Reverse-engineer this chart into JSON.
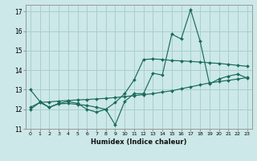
{
  "xlabel": "Humidex (Indice chaleur)",
  "bg_color": "#cce8e8",
  "grid_color": "#aacece",
  "line_color": "#1a6b5a",
  "xlim": [
    -0.5,
    23.5
  ],
  "ylim": [
    11,
    17.35
  ],
  "xticks": [
    0,
    1,
    2,
    3,
    4,
    5,
    6,
    7,
    8,
    9,
    10,
    11,
    12,
    13,
    14,
    15,
    16,
    17,
    18,
    19,
    20,
    21,
    22,
    23
  ],
  "yticks": [
    11,
    12,
    13,
    14,
    15,
    16,
    17
  ],
  "series1_x": [
    0,
    1,
    2,
    3,
    4,
    5,
    6,
    7,
    8,
    9,
    10,
    11,
    12,
    13,
    14,
    15,
    16,
    17,
    18,
    19,
    20,
    21,
    22,
    23
  ],
  "series1_y": [
    13.0,
    12.4,
    12.1,
    12.3,
    12.4,
    12.3,
    12.0,
    11.85,
    12.0,
    11.2,
    12.4,
    12.8,
    12.8,
    13.85,
    13.75,
    15.85,
    15.6,
    17.1,
    15.5,
    13.3,
    13.55,
    13.7,
    13.8,
    13.6
  ],
  "series2_x": [
    0,
    1,
    2,
    3,
    4,
    5,
    6,
    7,
    8,
    9,
    10,
    11,
    12,
    13,
    14,
    15,
    16,
    17,
    18,
    19,
    20,
    21,
    22,
    23
  ],
  "series2_y": [
    12.1,
    12.35,
    12.38,
    12.42,
    12.45,
    12.48,
    12.5,
    12.53,
    12.56,
    12.6,
    12.65,
    12.7,
    12.75,
    12.8,
    12.88,
    12.95,
    13.05,
    13.15,
    13.25,
    13.35,
    13.42,
    13.48,
    13.55,
    13.62
  ],
  "series3_x": [
    0,
    1,
    2,
    3,
    4,
    5,
    6,
    7,
    8,
    9,
    10,
    11,
    12,
    13,
    14,
    15,
    16,
    17,
    18,
    19,
    20,
    21,
    22,
    23
  ],
  "series3_y": [
    12.0,
    12.35,
    12.1,
    12.28,
    12.3,
    12.25,
    12.2,
    12.1,
    12.0,
    12.35,
    12.8,
    13.5,
    14.55,
    14.58,
    14.55,
    14.5,
    14.48,
    14.45,
    14.42,
    14.38,
    14.35,
    14.3,
    14.25,
    14.2
  ]
}
